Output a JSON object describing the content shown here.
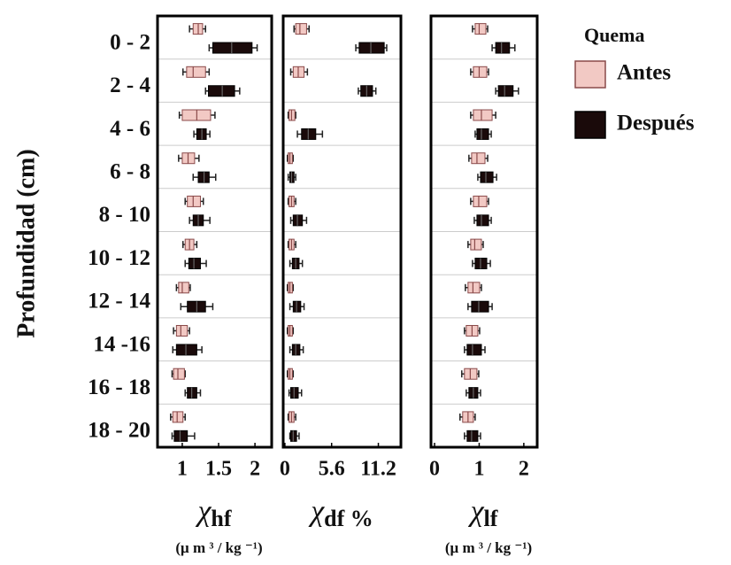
{
  "chart_data": {
    "type": "box",
    "ylabel": "Profundidad (cm)",
    "legend_title": "Quema",
    "categories": [
      "0 - 2",
      "2 - 4",
      "4 - 6",
      "6 - 8",
      "8 - 10",
      "10 - 12",
      "12 - 14",
      "14 -16",
      "16 - 18",
      "18 - 20"
    ],
    "series": [
      {
        "name": "Antes",
        "color": "#f2c9c4",
        "edge": "#8a4a4a"
      },
      {
        "name": "Después",
        "color": "#1a0a0a",
        "edge": "#000000"
      }
    ],
    "panels": [
      {
        "xlabel_symbol": "χ",
        "xlabel_sub": "hf",
        "xlabel_unit": "(μ m ³ / kg ⁻¹)",
        "xlim": [
          0.66,
          2.23
        ],
        "xticks": [
          1,
          1.5,
          2
        ],
        "series": [
          {
            "values": [
              [
                1.1,
                1.15,
                1.22,
                1.28,
                1.32
              ],
              [
                1.01,
                1.06,
                1.15,
                1.32,
                1.37
              ],
              [
                0.96,
                1.0,
                1.2,
                1.39,
                1.45
              ],
              [
                0.95,
                1.0,
                1.08,
                1.17,
                1.23
              ],
              [
                1.04,
                1.07,
                1.15,
                1.25,
                1.29
              ],
              [
                1.01,
                1.04,
                1.1,
                1.16,
                1.2
              ],
              [
                0.92,
                0.95,
                1.0,
                1.09,
                1.11
              ],
              [
                0.88,
                0.92,
                0.98,
                1.07,
                1.1
              ],
              [
                0.86,
                0.88,
                0.94,
                1.03,
                1.04
              ],
              [
                0.84,
                0.87,
                0.93,
                1.01,
                1.04
              ]
            ]
          },
          {
            "values": [
              [
                1.37,
                1.42,
                1.68,
                1.96,
                2.03
              ],
              [
                1.32,
                1.36,
                1.55,
                1.72,
                1.79
              ],
              [
                1.16,
                1.2,
                1.27,
                1.33,
                1.38
              ],
              [
                1.15,
                1.22,
                1.3,
                1.37,
                1.46
              ],
              [
                1.1,
                1.15,
                1.22,
                1.29,
                1.38
              ],
              [
                1.04,
                1.09,
                1.16,
                1.25,
                1.33
              ],
              [
                0.98,
                1.07,
                1.2,
                1.32,
                1.42
              ],
              [
                0.87,
                0.92,
                1.05,
                1.2,
                1.27
              ],
              [
                1.04,
                1.07,
                1.13,
                1.2,
                1.25
              ],
              [
                0.86,
                0.89,
                0.97,
                1.07,
                1.17
              ]
            ]
          }
        ]
      },
      {
        "xlabel_symbol": "χ",
        "xlabel_sub": "df %",
        "xlabel_unit": null,
        "xlim": [
          -0.2,
          13.9
        ],
        "xticks": [
          0,
          5.6,
          11.2
        ],
        "series": [
          {
            "values": [
              [
                1.1,
                1.3,
                1.8,
                2.6,
                2.9
              ],
              [
                0.7,
                1.0,
                1.6,
                2.3,
                2.7
              ],
              [
                0.4,
                0.5,
                0.8,
                1.2,
                1.3
              ],
              [
                0.3,
                0.4,
                0.6,
                0.9,
                1.0
              ],
              [
                0.4,
                0.5,
                0.8,
                1.1,
                1.3
              ],
              [
                0.4,
                0.5,
                0.8,
                1.1,
                1.3
              ],
              [
                0.3,
                0.4,
                0.6,
                0.9,
                1.0
              ],
              [
                0.3,
                0.4,
                0.6,
                0.9,
                1.0
              ],
              [
                0.3,
                0.4,
                0.6,
                0.9,
                1.0
              ],
              [
                0.4,
                0.5,
                0.8,
                1.1,
                1.3
              ]
            ]
          },
          {
            "values": [
              [
                8.5,
                8.9,
                10.3,
                11.9,
                12.2
              ],
              [
                8.8,
                9.1,
                9.8,
                10.5,
                10.9
              ],
              [
                1.5,
                2.0,
                2.8,
                3.7,
                4.5
              ],
              [
                0.4,
                0.6,
                0.8,
                1.1,
                1.3
              ],
              [
                0.7,
                1.0,
                1.5,
                2.1,
                2.6
              ],
              [
                0.6,
                0.9,
                1.3,
                1.7,
                2.1
              ],
              [
                0.6,
                1.0,
                1.4,
                1.9,
                2.3
              ],
              [
                0.6,
                0.9,
                1.3,
                1.8,
                2.2
              ],
              [
                0.5,
                0.7,
                1.1,
                1.6,
                2.0
              ],
              [
                0.6,
                0.7,
                1.0,
                1.4,
                1.7
              ]
            ]
          }
        ]
      },
      {
        "xlabel_symbol": "χ",
        "xlabel_sub": "lf",
        "xlabel_unit": "(μ m ³ / kg ⁻¹)",
        "xlim": [
          -0.08,
          2.3
        ],
        "xticks": [
          0,
          1,
          2
        ],
        "series": [
          {
            "values": [
              [
                0.85,
                0.91,
                1.0,
                1.15,
                1.19
              ],
              [
                0.81,
                0.87,
                1.0,
                1.17,
                1.21
              ],
              [
                0.81,
                0.87,
                1.05,
                1.29,
                1.37
              ],
              [
                0.77,
                0.83,
                0.95,
                1.13,
                1.19
              ],
              [
                0.81,
                0.87,
                0.99,
                1.17,
                1.21
              ],
              [
                0.75,
                0.81,
                0.9,
                1.05,
                1.09
              ],
              [
                0.69,
                0.75,
                0.86,
                1.01,
                1.05
              ],
              [
                0.67,
                0.71,
                0.84,
                0.97,
                1.01
              ],
              [
                0.61,
                0.67,
                0.8,
                0.95,
                0.99
              ],
              [
                0.57,
                0.63,
                0.75,
                0.87,
                0.91
              ]
            ]
          },
          {
            "values": [
              [
                1.29,
                1.37,
                1.5,
                1.68,
                1.8
              ],
              [
                1.37,
                1.43,
                1.57,
                1.76,
                1.88
              ],
              [
                0.91,
                0.95,
                1.05,
                1.21,
                1.27
              ],
              [
                0.97,
                1.03,
                1.15,
                1.31,
                1.39
              ],
              [
                0.89,
                0.95,
                1.05,
                1.21,
                1.27
              ],
              [
                0.85,
                0.91,
                1.03,
                1.17,
                1.25
              ],
              [
                0.75,
                0.83,
                0.99,
                1.21,
                1.29
              ],
              [
                0.67,
                0.73,
                0.85,
                1.05,
                1.13
              ],
              [
                0.71,
                0.77,
                0.87,
                0.97,
                1.03
              ],
              [
                0.67,
                0.73,
                0.83,
                0.97,
                1.03
              ]
            ]
          }
        ]
      }
    ]
  }
}
